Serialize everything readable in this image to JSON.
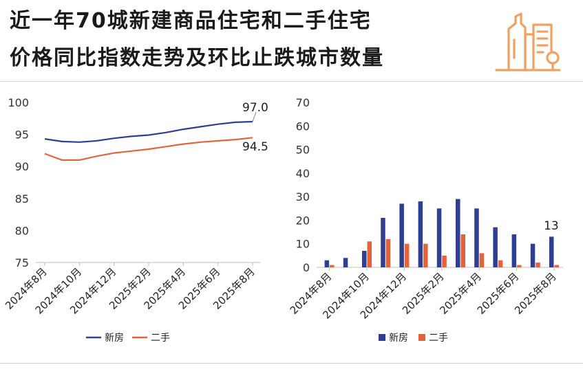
{
  "title": {
    "line1": "近一年70城新建商品住宅和二手住宅",
    "line2": "价格同比指数走势及环比止跌城市数量"
  },
  "colors": {
    "new": "#2e3f8f",
    "second": "#e2643d",
    "accent": "#f0a060"
  },
  "icons": {
    "logo": "city-buildings-icon"
  },
  "chart_data": [
    {
      "type": "line",
      "x": [
        "2024年8月",
        "2024年9月",
        "2024年10月",
        "2024年11月",
        "2024年12月",
        "2025年1月",
        "2025年2月",
        "2025年3月",
        "2025年4月",
        "2025年5月",
        "2025年6月",
        "2025年7月",
        "2025年8月"
      ],
      "xtick_labels": [
        "2024年8月",
        "2024年10月",
        "2024年12月",
        "2025年2月",
        "2025年4月",
        "2025年6月",
        "2025年8月"
      ],
      "series": [
        {
          "name": "新房",
          "values": [
            94.3,
            93.9,
            93.8,
            94.0,
            94.4,
            94.7,
            94.9,
            95.3,
            95.8,
            96.2,
            96.6,
            96.9,
            97.0
          ]
        },
        {
          "name": "二手",
          "values": [
            92.0,
            91.0,
            91.0,
            91.6,
            92.1,
            92.4,
            92.7,
            93.1,
            93.5,
            93.8,
            94.0,
            94.2,
            94.5
          ]
        }
      ],
      "ylim": [
        75,
        100
      ],
      "yticks": [
        "75",
        "80",
        "85",
        "90",
        "95",
        "100"
      ],
      "annotations": {
        "new_last": "97.0",
        "second_last": "94.5"
      },
      "legend": [
        "新房",
        "二手"
      ],
      "legend_placement": "bottom"
    },
    {
      "type": "bar",
      "categories": [
        "2024年8月",
        "2024年9月",
        "2024年10月",
        "2024年11月",
        "2024年12月",
        "2025年1月",
        "2025年2月",
        "2025年3月",
        "2025年4月",
        "2025年5月",
        "2025年6月",
        "2025年7月",
        "2025年8月"
      ],
      "xtick_labels": [
        "2024年8月",
        "2024年10月",
        "2024年12月",
        "2025年2月",
        "2025年4月",
        "2025年6月",
        "2025年8月"
      ],
      "series": [
        {
          "name": "新房",
          "values": [
            3,
            4,
            7,
            21,
            27,
            28,
            25,
            29,
            25,
            17,
            14,
            10,
            13
          ]
        },
        {
          "name": "二手",
          "values": [
            1,
            0,
            11,
            12,
            10,
            10,
            5,
            14,
            6,
            3,
            1,
            2,
            1
          ]
        }
      ],
      "ylim": [
        0,
        70
      ],
      "yticks": [
        "0",
        "10",
        "20",
        "30",
        "40",
        "50",
        "60",
        "70"
      ],
      "annotations": {
        "new_last": "13"
      },
      "legend": [
        "新房",
        "二手"
      ],
      "legend_placement": "bottom"
    }
  ]
}
